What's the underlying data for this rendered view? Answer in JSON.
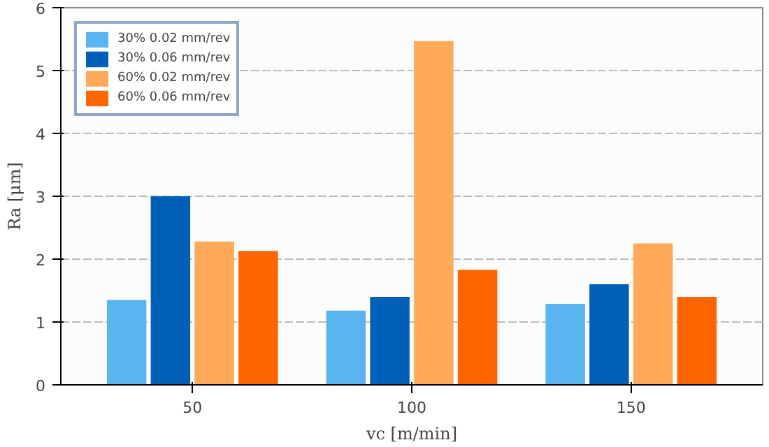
{
  "chart_data": {
    "type": "bar",
    "xlabel": "vc [m/min]",
    "ylabel": "Ra [μm]",
    "categories": [
      "50",
      "100",
      "150"
    ],
    "series": [
      {
        "name": "30% 0.02 mm/rev",
        "color": "#5ab4f0",
        "values": [
          1.35,
          1.18,
          1.29
        ]
      },
      {
        "name": "30% 0.06 mm/rev",
        "color": "#0060b8",
        "values": [
          3.0,
          1.4,
          1.6
        ]
      },
      {
        "name": "60% 0.02 mm/rev",
        "color": "#ffaa5a",
        "values": [
          2.28,
          5.47,
          2.25
        ]
      },
      {
        "name": "60% 0.06 mm/rev",
        "color": "#ff6600",
        "values": [
          2.13,
          1.83,
          1.4
        ]
      }
    ],
    "ylim": [
      0,
      6
    ],
    "yticks": [
      0,
      1,
      2,
      3,
      4,
      5,
      6
    ],
    "grid": "y",
    "legend": "top left"
  }
}
